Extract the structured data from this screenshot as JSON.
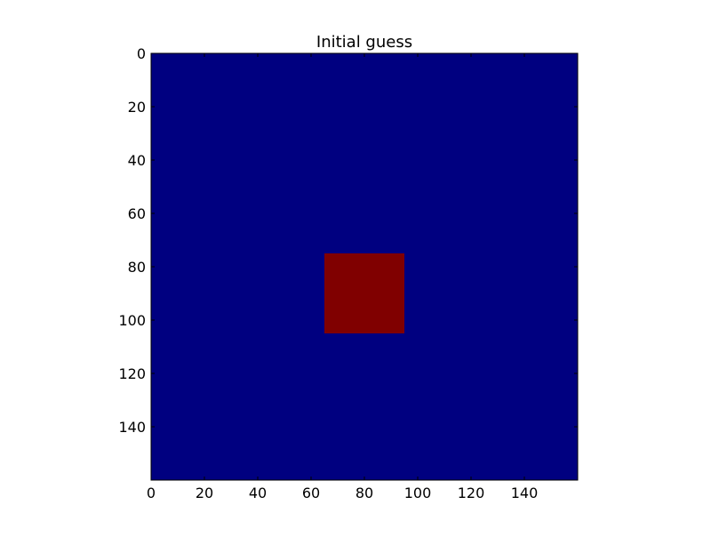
{
  "chart_data": {
    "type": "heatmap",
    "title": "Initial guess",
    "xlabel": "",
    "ylabel": "",
    "xlim": [
      0,
      160
    ],
    "ylim": [
      160,
      0
    ],
    "y_axis_inverted": true,
    "grid": false,
    "legend": "none",
    "grid_shape": [
      160,
      160
    ],
    "background_value": 0,
    "background_color": "#000080",
    "regions": [
      {
        "x": [
          65,
          95
        ],
        "y": [
          75,
          105
        ],
        "value": 1,
        "color": "#800000"
      }
    ],
    "xticks": [
      0,
      20,
      40,
      60,
      80,
      100,
      120,
      140
    ],
    "yticks": [
      0,
      20,
      40,
      60,
      80,
      100,
      120,
      140
    ]
  }
}
